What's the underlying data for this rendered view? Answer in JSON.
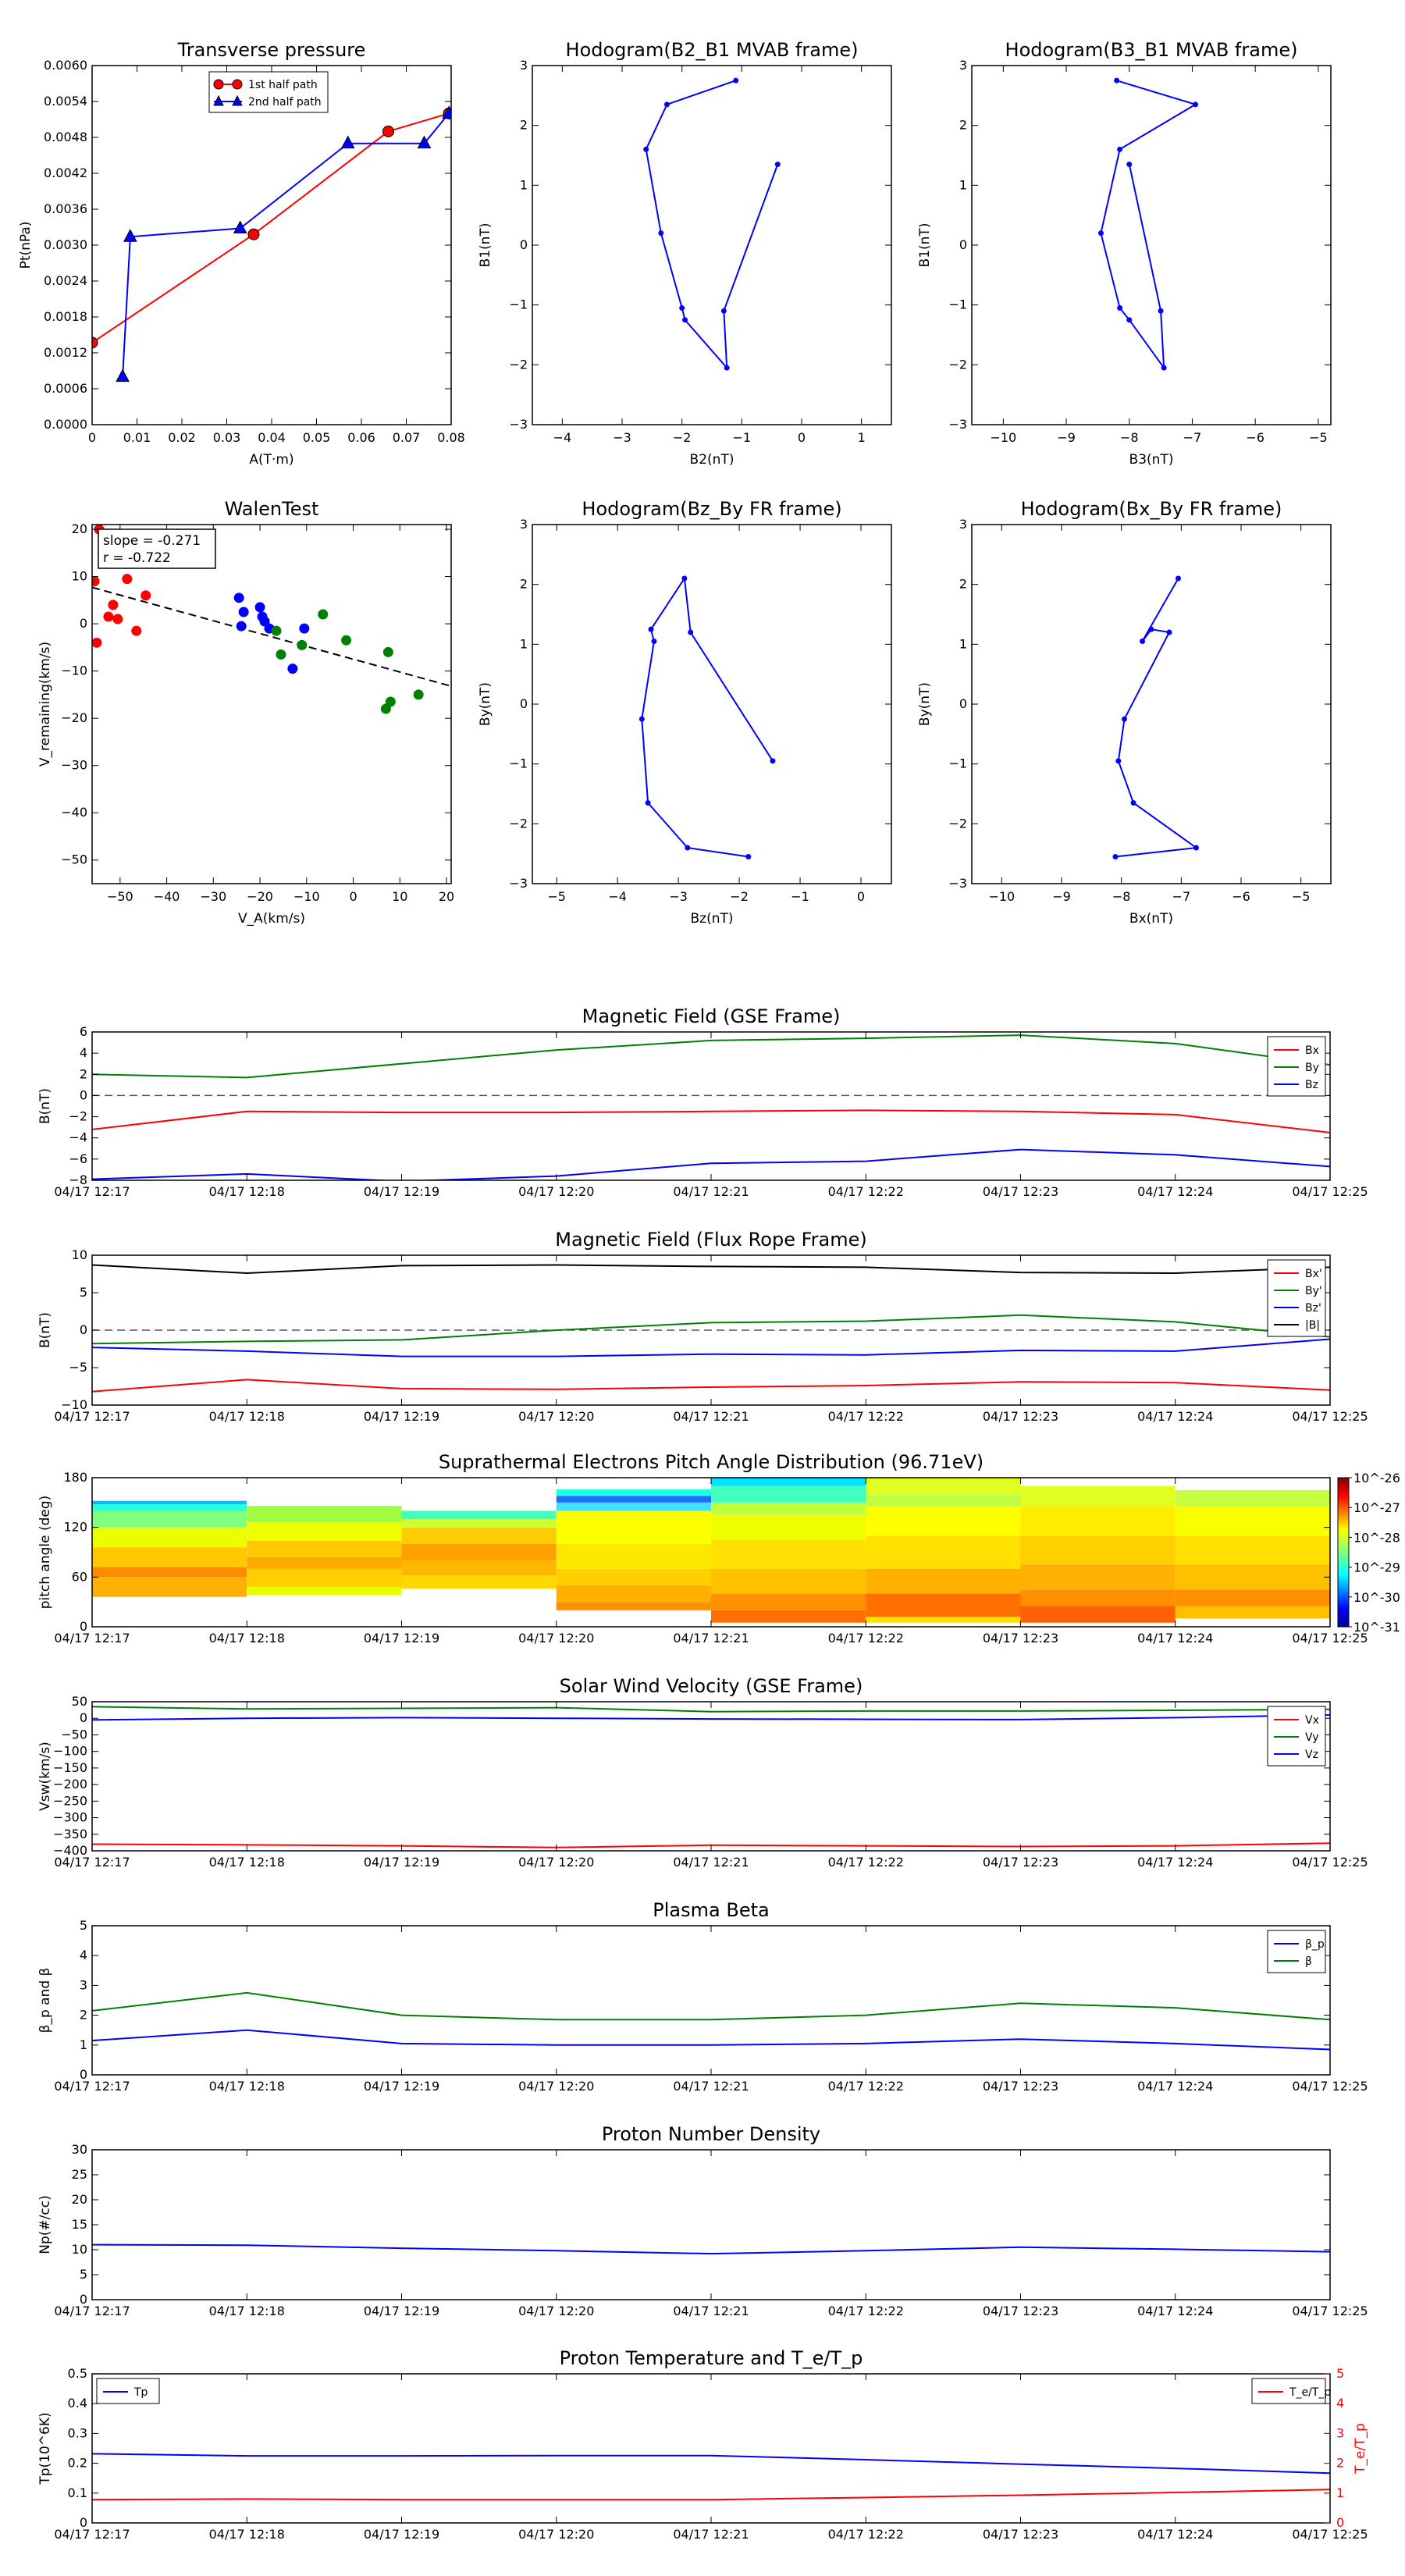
{
  "time_ticks": [
    "04/17 12:17",
    "04/17 12:18",
    "04/17 12:19",
    "04/17 12:20",
    "04/17 12:21",
    "04/17 12:22",
    "04/17 12:23",
    "04/17 12:24",
    "04/17 12:25"
  ],
  "colors": {
    "red": "#ff0000",
    "green": "#008000",
    "blue": "#0000ff",
    "black": "#000000",
    "dash": "#555555"
  },
  "chart_data": [
    {
      "id": "tp",
      "type": "line",
      "title": "Transverse pressure",
      "xlabel": "A(T·m)",
      "ylabel": "Pt(nPa)",
      "xlim": [
        0,
        0.08
      ],
      "ylim": [
        0,
        0.006
      ],
      "xticks": [
        0,
        0.01,
        0.02,
        0.03,
        0.04,
        0.05,
        0.06,
        0.07,
        0.08
      ],
      "yticks": [
        0,
        0.0006,
        0.0012,
        0.0018,
        0.0024,
        0.003,
        0.0036,
        0.0042,
        0.0048,
        0.0054,
        0.006
      ],
      "ytick_labels": [
        "0.0000",
        "0.0006",
        "0.0012",
        "0.0018",
        "0.0024",
        "0.0030",
        "0.0036",
        "0.0042",
        "0.0048",
        "0.0054",
        "0.0060"
      ],
      "legend_pos": "top-center",
      "series": [
        {
          "name": "1st half path",
          "color": "red",
          "marker": "circle",
          "x": [
            0.0,
            0.036,
            0.066,
            0.0795
          ],
          "y": [
            0.00137,
            0.00318,
            0.0049,
            0.0052
          ]
        },
        {
          "name": "2nd half path",
          "color": "blue",
          "marker": "triangle",
          "x": [
            0.0795,
            0.074,
            0.057,
            0.033,
            0.0085,
            0.0068
          ],
          "y": [
            0.0052,
            0.0047,
            0.0047,
            0.00328,
            0.00314,
            0.0008
          ]
        }
      ]
    },
    {
      "id": "h1",
      "type": "line",
      "title": "Hodogram(B2_B1 MVAB frame)",
      "xlabel": "B2(nT)",
      "ylabel": "B1(nT)",
      "xlim": [
        -4.5,
        1.5
      ],
      "ylim": [
        -3,
        3
      ],
      "xticks": [
        -4,
        -3,
        -2,
        -1,
        0,
        1
      ],
      "yticks": [
        -3,
        -2,
        -1,
        0,
        1,
        2,
        3
      ],
      "series": [
        {
          "color": "blue",
          "marker": "dot",
          "x": [
            -0.4,
            -1.3,
            -1.25,
            -1.95,
            -2.0,
            -2.35,
            -2.6,
            -2.25,
            -1.1
          ],
          "y": [
            1.35,
            -1.1,
            -2.05,
            -1.25,
            -1.05,
            0.2,
            1.6,
            2.35,
            2.75
          ]
        }
      ]
    },
    {
      "id": "h2",
      "type": "line",
      "title": "Hodogram(B3_B1 MVAB frame)",
      "xlabel": "B3(nT)",
      "ylabel": "B1(nT)",
      "xlim": [
        -10.5,
        -4.8
      ],
      "ylim": [
        -3,
        3
      ],
      "xticks": [
        -10,
        -9,
        -8,
        -7,
        -6,
        -5
      ],
      "yticks": [
        -3,
        -2,
        -1,
        0,
        1,
        2,
        3
      ],
      "series": [
        {
          "color": "blue",
          "marker": "dot",
          "x": [
            -8.0,
            -7.5,
            -7.45,
            -8.0,
            -8.15,
            -8.45,
            -8.15,
            -6.95,
            -8.2
          ],
          "y": [
            1.35,
            -1.1,
            -2.05,
            -1.25,
            -1.05,
            0.2,
            1.6,
            2.35,
            2.75
          ]
        }
      ]
    },
    {
      "id": "walen",
      "type": "scatter",
      "title": "WalenTest",
      "xlabel": "V_A(km/s)",
      "ylabel": "V_remaining(km/s)",
      "xlim": [
        -56,
        21
      ],
      "ylim": [
        -55,
        21
      ],
      "xticks": [
        -50,
        -40,
        -30,
        -20,
        -10,
        0,
        10,
        20
      ],
      "yticks": [
        -50,
        -40,
        -30,
        -20,
        -10,
        0,
        10,
        20
      ],
      "annotation": [
        "slope = -0.271",
        "r = -0.722"
      ],
      "fit": {
        "slope": -0.271,
        "x": [
          -56,
          21
        ],
        "y": [
          7.7,
          -13.2
        ]
      },
      "series": [
        {
          "color": "red",
          "x": [
            -55.5,
            -54.5,
            -52.5,
            -51.5,
            -50.5,
            -48.5,
            -46.5,
            -44.5,
            -55
          ],
          "y": [
            9,
            20,
            1.5,
            4,
            1,
            9.5,
            -1.5,
            6,
            -4
          ]
        },
        {
          "color": "blue",
          "x": [
            -24.5,
            -24,
            -23.5,
            -20,
            -19.5,
            -19,
            -18,
            -13,
            -10.5
          ],
          "y": [
            5.5,
            -0.5,
            2.5,
            3.5,
            1.5,
            0.5,
            -1,
            -9.5,
            -1
          ]
        },
        {
          "color": "green",
          "x": [
            -16.5,
            -15.5,
            -11,
            -6.5,
            -1.5,
            7,
            7.5,
            8,
            14
          ],
          "y": [
            -1.5,
            -6.5,
            -4.5,
            2,
            -3.5,
            -18,
            -6,
            -16.5,
            -15
          ]
        }
      ]
    },
    {
      "id": "h3",
      "type": "line",
      "title": "Hodogram(Bz_By FR frame)",
      "xlabel": "Bz(nT)",
      "ylabel": "By(nT)",
      "xlim": [
        -5.4,
        0.5
      ],
      "ylim": [
        -3,
        3
      ],
      "xticks": [
        -5,
        -4,
        -3,
        -2,
        -1,
        0
      ],
      "yticks": [
        -3,
        -2,
        -1,
        0,
        1,
        2,
        3
      ],
      "series": [
        {
          "color": "blue",
          "marker": "dot",
          "x": [
            -1.45,
            -2.8,
            -2.9,
            -3.45,
            -3.4,
            -3.6,
            -3.5,
            -2.85,
            -1.85
          ],
          "y": [
            -0.95,
            1.2,
            2.1,
            1.25,
            1.05,
            -0.25,
            -1.65,
            -2.4,
            -2.55
          ]
        }
      ]
    },
    {
      "id": "h4",
      "type": "line",
      "title": "Hodogram(Bx_By FR frame)",
      "xlabel": "Bx(nT)",
      "ylabel": "By(nT)",
      "xlim": [
        -10.5,
        -4.5
      ],
      "ylim": [
        -3,
        3
      ],
      "xticks": [
        -10,
        -9,
        -8,
        -7,
        -6,
        -5
      ],
      "yticks": [
        -3,
        -2,
        -1,
        0,
        1,
        2,
        3
      ],
      "series": [
        {
          "color": "blue",
          "marker": "dot",
          "x": [
            -8.1,
            -6.75,
            -7.8,
            -8.05,
            -7.95,
            -7.2,
            -7.5,
            -7.65,
            -7.05
          ],
          "y": [
            -2.55,
            -2.4,
            -1.65,
            -0.95,
            -0.25,
            1.2,
            1.25,
            1.05,
            2.1
          ]
        }
      ]
    },
    {
      "id": "mag_gse",
      "type": "line",
      "title": "Magnetic Field (GSE Frame)",
      "ylabel": "B(nT)",
      "ylim": [
        -8,
        6
      ],
      "yticks": [
        -8,
        -6,
        -4,
        -2,
        0,
        2,
        4,
        6
      ],
      "legend_pos": "right",
      "series": [
        {
          "name": "Bx",
          "color": "red",
          "values": [
            -3.2,
            -1.5,
            -1.6,
            -1.6,
            -1.5,
            -1.4,
            -1.5,
            -1.8,
            -3.5
          ]
        },
        {
          "name": "By",
          "color": "green",
          "values": [
            2.0,
            1.7,
            3.0,
            4.3,
            5.2,
            5.4,
            5.7,
            4.9,
            2.9
          ]
        },
        {
          "name": "Bz",
          "color": "blue",
          "values": [
            -7.9,
            -7.4,
            -8.1,
            -7.6,
            -6.4,
            -6.2,
            -5.1,
            -5.6,
            -6.7
          ]
        }
      ]
    },
    {
      "id": "mag_fr",
      "type": "line",
      "title": "Magnetic Field (Flux Rope Frame)",
      "ylabel": "B(nT)",
      "ylim": [
        -10,
        10
      ],
      "yticks": [
        -10,
        -5,
        0,
        5,
        10
      ],
      "legend_pos": "right",
      "series": [
        {
          "name": "Bx'",
          "color": "red",
          "values": [
            -8.2,
            -6.6,
            -7.8,
            -7.9,
            -7.6,
            -7.4,
            -6.9,
            -7.0,
            -8.0
          ]
        },
        {
          "name": "By'",
          "color": "green",
          "values": [
            -1.8,
            -1.5,
            -1.3,
            0.0,
            1.0,
            1.2,
            2.0,
            1.1,
            -0.9
          ]
        },
        {
          "name": "Bz'",
          "color": "blue",
          "values": [
            -2.3,
            -2.8,
            -3.5,
            -3.5,
            -3.2,
            -3.3,
            -2.7,
            -2.8,
            -1.2
          ]
        },
        {
          "name": "|B|",
          "color": "black",
          "values": [
            8.7,
            7.6,
            8.6,
            8.7,
            8.5,
            8.4,
            7.7,
            7.6,
            8.4
          ]
        }
      ]
    },
    {
      "id": "pad",
      "type": "heatmap",
      "title": "Suprathermal Electrons Pitch Angle Distribution (96.71eV)",
      "ylabel": "pitch angle (deg)",
      "ylim": [
        0,
        180
      ],
      "yticks": [
        0,
        60,
        120,
        180
      ],
      "colorbar": [
        "10^-26",
        "10^-27",
        "10^-28",
        "10^-29",
        "10^-30",
        "10^-31"
      ],
      "columns": [
        {
          "t0": 0,
          "t1": 1,
          "bands": [
            [
              36,
              60,
              "#ffb000"
            ],
            [
              60,
              72,
              "#ff8c00"
            ],
            [
              72,
              96,
              "#ffc800"
            ],
            [
              96,
              120,
              "#eaff00"
            ],
            [
              120,
              140,
              "#80ff80"
            ],
            [
              140,
              148,
              "#28ffd8"
            ],
            [
              148,
              152,
              "#00c0ff"
            ]
          ]
        },
        {
          "t0": 1,
          "t1": 2,
          "bands": [
            [
              38,
              48,
              "#e6ff00"
            ],
            [
              48,
              70,
              "#ffd000"
            ],
            [
              70,
              84,
              "#ffa800"
            ],
            [
              84,
              104,
              "#ffc800"
            ],
            [
              104,
              126,
              "#f0ff00"
            ],
            [
              126,
              146,
              "#a0ff40"
            ]
          ]
        },
        {
          "t0": 2,
          "t1": 3,
          "bands": [
            [
              46,
              62,
              "#ffd800"
            ],
            [
              62,
              80,
              "#ffb800"
            ],
            [
              80,
              100,
              "#ffa000"
            ],
            [
              100,
              120,
              "#ffcc00"
            ],
            [
              120,
              130,
              "#ccff30"
            ],
            [
              130,
              140,
              "#40ffc0"
            ]
          ]
        },
        {
          "t0": 3,
          "t1": 4,
          "bands": [
            [
              20,
              30,
              "#ff9000"
            ],
            [
              30,
              50,
              "#ffb000"
            ],
            [
              50,
              70,
              "#ffd000"
            ],
            [
              70,
              100,
              "#ffe800"
            ],
            [
              100,
              140,
              "#ffff00"
            ],
            [
              140,
              150,
              "#40e0ff"
            ],
            [
              150,
              158,
              "#1a70ff"
            ],
            [
              158,
              166,
              "#20ffe0"
            ]
          ]
        },
        {
          "t0": 4,
          "t1": 5,
          "bands": [
            [
              5,
              20,
              "#ff7000"
            ],
            [
              20,
              40,
              "#ff9000"
            ],
            [
              40,
              70,
              "#ffc000"
            ],
            [
              70,
              105,
              "#ffe000"
            ],
            [
              105,
              135,
              "#f0ff00"
            ],
            [
              135,
              150,
              "#c0ff40"
            ],
            [
              150,
              170,
              "#40ffc0"
            ],
            [
              170,
              180,
              "#00e0ff"
            ]
          ]
        },
        {
          "t0": 5,
          "t1": 6,
          "bands": [
            [
              5,
              12,
              "#ffe000"
            ],
            [
              12,
              40,
              "#ff7000"
            ],
            [
              40,
              70,
              "#ffb000"
            ],
            [
              70,
              110,
              "#ffe000"
            ],
            [
              110,
              145,
              "#ffff00"
            ],
            [
              145,
              160,
              "#c0ff40"
            ],
            [
              160,
              180,
              "#e0ff20"
            ]
          ]
        },
        {
          "t0": 6,
          "t1": 7,
          "bands": [
            [
              5,
              25,
              "#ff6000"
            ],
            [
              25,
              45,
              "#ff9000"
            ],
            [
              45,
              75,
              "#ffb000"
            ],
            [
              75,
              110,
              "#ffd000"
            ],
            [
              110,
              145,
              "#ffec00"
            ],
            [
              145,
              170,
              "#e0ff20"
            ]
          ]
        },
        {
          "t0": 7,
          "t1": 8,
          "bands": [
            [
              10,
              25,
              "#ffc000"
            ],
            [
              25,
              45,
              "#ff9000"
            ],
            [
              45,
              75,
              "#ffc000"
            ],
            [
              75,
              110,
              "#ffe000"
            ],
            [
              110,
              145,
              "#f8ff00"
            ],
            [
              145,
              165,
              "#c8ff40"
            ]
          ]
        }
      ]
    },
    {
      "id": "vsw",
      "type": "line",
      "title": "Solar Wind Velocity (GSE Frame)",
      "ylabel": "Vsw(km/s)",
      "ylim": [
        -400,
        50
      ],
      "yticks": [
        -400,
        -350,
        -300,
        -250,
        -200,
        -150,
        -100,
        -50,
        0,
        50
      ],
      "legend_pos": "right",
      "series": [
        {
          "name": "Vx",
          "color": "red",
          "values": [
            -380,
            -382,
            -385,
            -390,
            -383,
            -385,
            -387,
            -385,
            -377
          ]
        },
        {
          "name": "Vy",
          "color": "green",
          "values": [
            35,
            28,
            30,
            32,
            20,
            22,
            22,
            24,
            27
          ]
        },
        {
          "name": "Vz",
          "color": "blue",
          "values": [
            -5,
            0,
            2,
            0,
            -2,
            -3,
            -4,
            2,
            10
          ]
        }
      ]
    },
    {
      "id": "beta",
      "type": "line",
      "title": "Plasma Beta",
      "ylabel": "β_p and β",
      "ylim": [
        0,
        5
      ],
      "yticks": [
        0,
        1,
        2,
        3,
        4,
        5
      ],
      "legend_pos": "top-right",
      "series": [
        {
          "name": "β_p",
          "color": "blue",
          "values": [
            1.15,
            1.5,
            1.05,
            1.0,
            1.0,
            1.05,
            1.2,
            1.05,
            0.85
          ]
        },
        {
          "name": "β",
          "color": "green",
          "values": [
            2.15,
            2.75,
            2.0,
            1.85,
            1.85,
            2.0,
            2.4,
            2.25,
            1.85
          ]
        }
      ]
    },
    {
      "id": "np",
      "type": "line",
      "title": "Proton Number Density",
      "ylabel": "Np(#/cc)",
      "ylim": [
        0,
        30
      ],
      "yticks": [
        0,
        5,
        10,
        15,
        20,
        25,
        30
      ],
      "series": [
        {
          "color": "blue",
          "values": [
            11.0,
            10.9,
            10.3,
            9.8,
            9.2,
            9.8,
            10.5,
            10.1,
            9.6
          ]
        }
      ]
    },
    {
      "id": "temp",
      "type": "line",
      "title": "Proton Temperature and T_e/T_p",
      "ylabel": "Tp(10^6K)",
      "ylim": [
        0,
        0.5
      ],
      "yticks": [
        0,
        0.1,
        0.2,
        0.3,
        0.4,
        0.5
      ],
      "y2label": "T_e/T_p",
      "y2lim": [
        0,
        5
      ],
      "y2ticks": [
        0,
        1,
        2,
        3,
        4,
        5
      ],
      "legend_pos": "top-left / top-right",
      "series": [
        {
          "name": "Tp",
          "color": "blue",
          "axis": "left",
          "values": [
            0.232,
            0.225,
            0.225,
            0.226,
            0.226,
            0.212,
            0.197,
            0.183,
            0.167
          ]
        },
        {
          "name": "T_e/T_p",
          "color": "red",
          "axis": "right",
          "values": [
            0.78,
            0.8,
            0.78,
            0.78,
            0.78,
            0.85,
            0.93,
            1.02,
            1.12
          ]
        }
      ]
    }
  ]
}
